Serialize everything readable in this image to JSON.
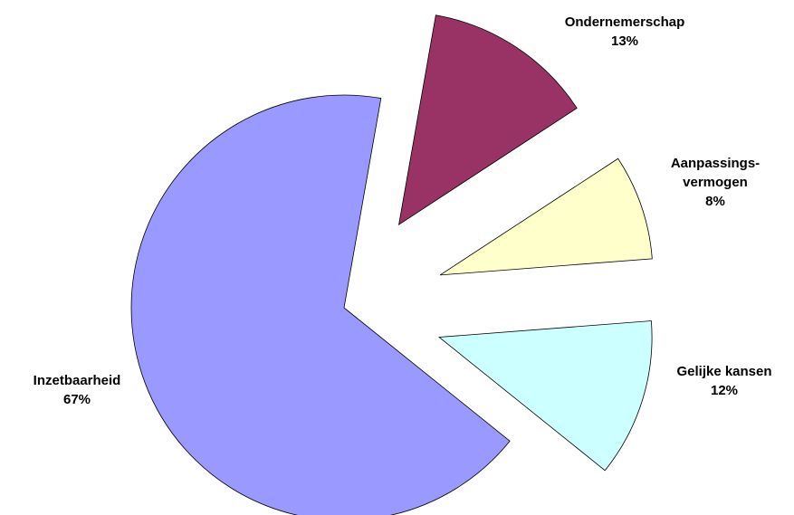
{
  "chart_data": {
    "type": "pie",
    "categories": [
      "Ondernemerschap",
      "Aanpassings-vermogen",
      "Gelijke kansen",
      "Inzetbaarheid"
    ],
    "values": [
      13,
      8,
      12,
      67
    ],
    "value_labels": [
      "13%",
      "8%",
      "12%",
      "67%"
    ],
    "colors": [
      "#993366",
      "#FFFFCC",
      "#CCFFFF",
      "#9999FF"
    ]
  }
}
